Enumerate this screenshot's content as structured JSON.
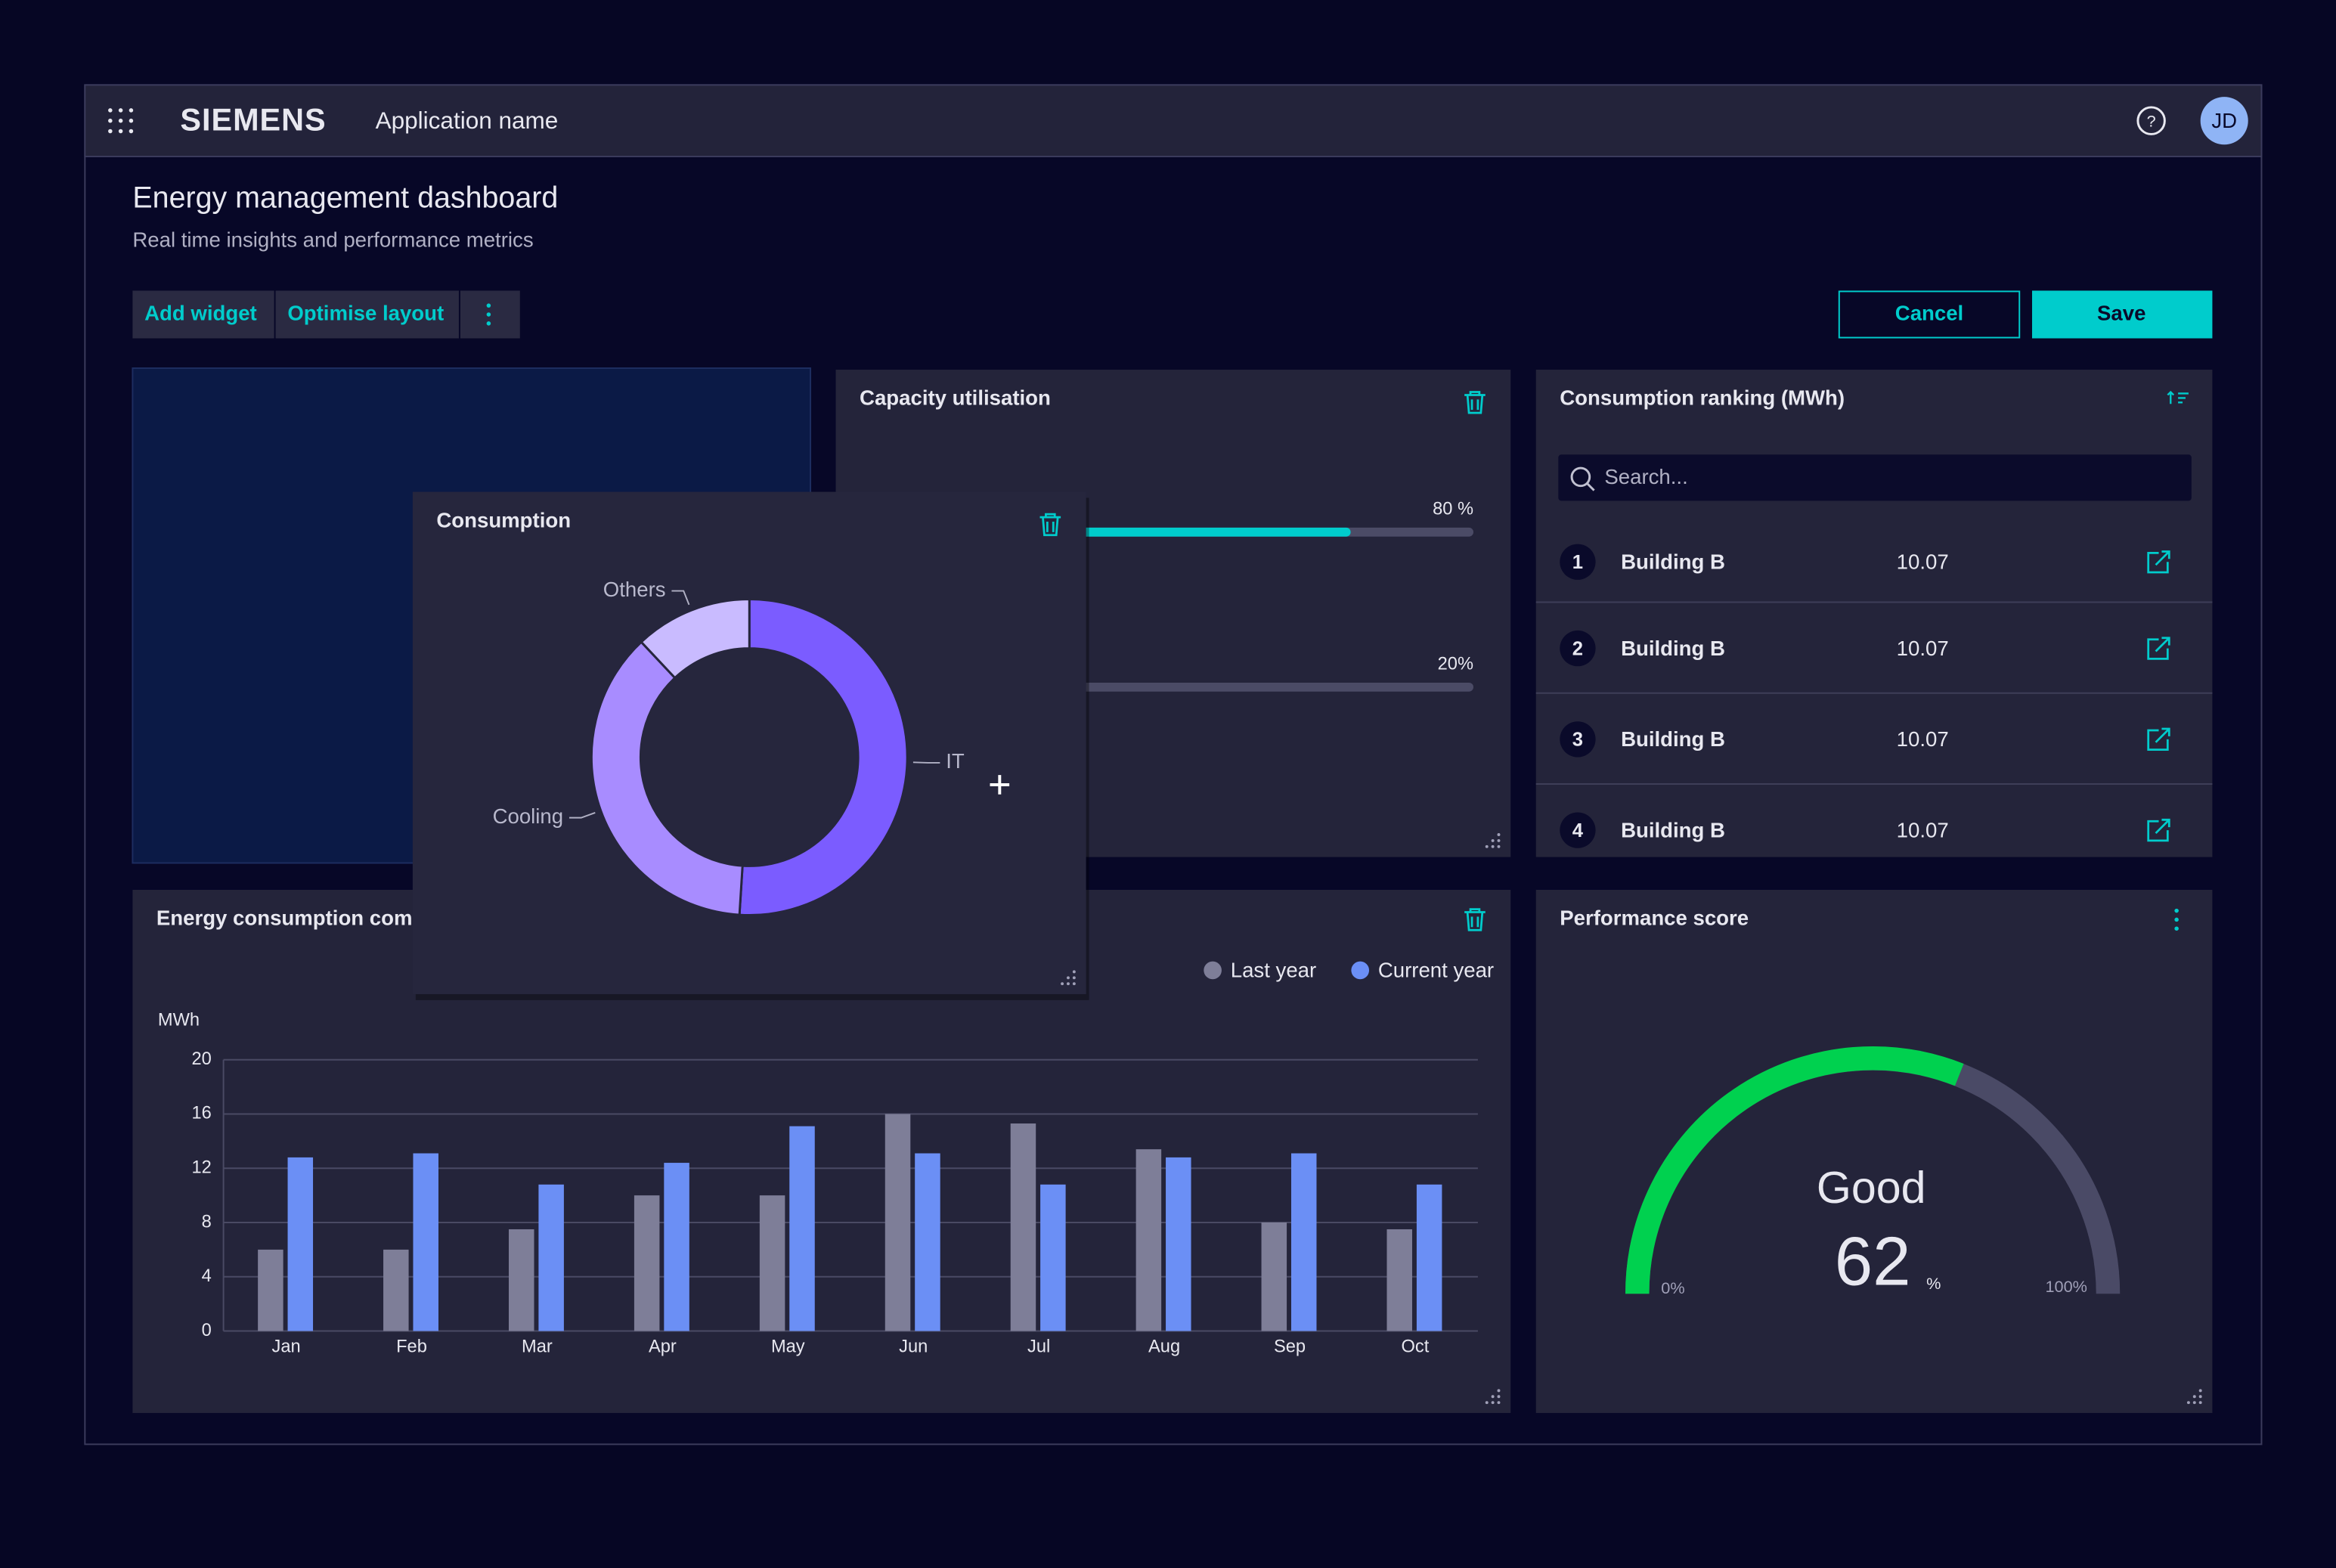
{
  "header": {
    "brand": "SIEMENS",
    "app_name": "Application name",
    "avatar": "JD"
  },
  "page": {
    "title": "Energy management dashboard",
    "subtitle": "Real time insights and performance metrics"
  },
  "toolbar": {
    "actions": [
      "Add widget",
      "Optimise layout"
    ],
    "cancel": "Cancel",
    "save": "Save"
  },
  "ranking": {
    "title": "Consumption ranking (MWh)",
    "search_placeholder": "Search...",
    "rows": [
      {
        "rank": 1,
        "name": "Building B",
        "value": 10.07
      },
      {
        "rank": 2,
        "name": "Building B",
        "value": 10.07
      },
      {
        "rank": 3,
        "name": "Building B",
        "value": 10.07
      },
      {
        "rank": 4,
        "name": "Building B",
        "value": 10.07
      }
    ]
  },
  "chart_data": [
    {
      "type": "bar",
      "orientation": "horizontal",
      "title": "Capacity utilisation",
      "values": [
        80,
        20
      ],
      "value_labels": [
        "80 %",
        "20%"
      ],
      "xlim": [
        0,
        100
      ],
      "color": "#00cccc"
    },
    {
      "type": "pie",
      "title": "Consumption",
      "donut": true,
      "categories": [
        "IT",
        "Cooling",
        "Others"
      ],
      "values": [
        51,
        37,
        12
      ],
      "colors": [
        "#7b5cff",
        "#a88cff",
        "#c9bbff"
      ]
    },
    {
      "type": "bar",
      "orientation": "vertical",
      "title": "Energy consumption com",
      "y_label": "MWh",
      "categories": [
        "Jan",
        "Feb",
        "Mar",
        "Apr",
        "May",
        "Jun",
        "Jul",
        "Aug",
        "Sep",
        "Oct"
      ],
      "series": [
        {
          "name": "Last year",
          "color": "#7e7e98",
          "values": [
            6,
            6,
            7.5,
            10,
            10,
            16,
            15.3,
            13.4,
            8,
            7.5
          ]
        },
        {
          "name": "Current year",
          "color": "#6b8ff5",
          "values": [
            12.8,
            13.1,
            10.8,
            12.4,
            15.1,
            13.1,
            10.8,
            12.8,
            13.1,
            10.8
          ]
        }
      ],
      "ylim": [
        0,
        20
      ],
      "yticks": [
        0,
        4,
        8,
        12,
        16,
        20
      ],
      "grid": true
    },
    {
      "type": "gauge",
      "title": "Performance score",
      "status": "Good",
      "value": 62,
      "unit": "%",
      "range": [
        {
          "value": 0,
          "label": "0%"
        },
        {
          "value": 100,
          "label": "100%"
        }
      ],
      "color": "#00d14f"
    }
  ]
}
